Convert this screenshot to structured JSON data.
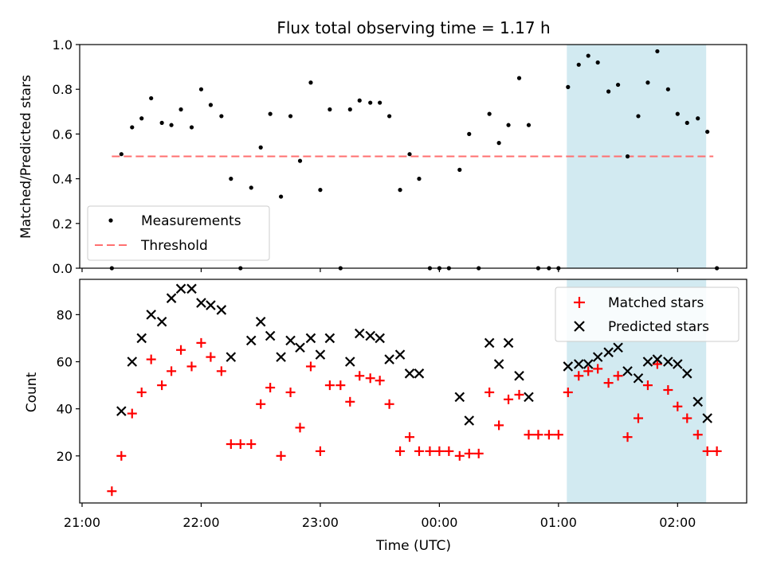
{
  "figure": {
    "title": "Flux total observing time = 1.17 h",
    "xlabel": "Time (UTC)",
    "x_tick_labels": [
      "21:00",
      "22:00",
      "23:00",
      "00:00",
      "01:00",
      "02:00"
    ]
  },
  "chart_data": [
    {
      "type": "scatter",
      "title": "Flux total observing time = 1.17 h",
      "ylabel": "Matched/Predicted stars",
      "xlim_hours": [
        20.98,
        26.58
      ],
      "ylim": [
        0,
        1.0
      ],
      "y_ticks": [
        "0.0",
        "0.2",
        "0.4",
        "0.6",
        "0.8",
        "1.0"
      ],
      "shaded_region_hours": [
        25.07,
        26.24
      ],
      "shaded_color": "#add8e6",
      "legend": [
        "Measurements",
        "Threshold"
      ],
      "legend_position": "lower-left",
      "threshold": {
        "name": "Threshold",
        "value": 0.5,
        "x_range_hours": [
          21.25,
          26.3
        ],
        "color": "#ff6f6f"
      },
      "series": [
        {
          "name": "Measurements",
          "color": "#000000",
          "points": [
            [
              21.25,
              0.0
            ],
            [
              21.33,
              0.51
            ],
            [
              21.42,
              0.63
            ],
            [
              21.5,
              0.67
            ],
            [
              21.58,
              0.76
            ],
            [
              21.67,
              0.65
            ],
            [
              21.75,
              0.64
            ],
            [
              21.83,
              0.71
            ],
            [
              21.92,
              0.63
            ],
            [
              22.0,
              0.8
            ],
            [
              22.08,
              0.73
            ],
            [
              22.17,
              0.68
            ],
            [
              22.25,
              0.4
            ],
            [
              22.33,
              0.0
            ],
            [
              22.42,
              0.36
            ],
            [
              22.5,
              0.54
            ],
            [
              22.58,
              0.69
            ],
            [
              22.67,
              0.32
            ],
            [
              22.75,
              0.68
            ],
            [
              22.83,
              0.48
            ],
            [
              22.92,
              0.83
            ],
            [
              23.0,
              0.35
            ],
            [
              23.08,
              0.71
            ],
            [
              23.17,
              0.0
            ],
            [
              23.25,
              0.71
            ],
            [
              23.33,
              0.75
            ],
            [
              23.42,
              0.74
            ],
            [
              23.5,
              0.74
            ],
            [
              23.58,
              0.68
            ],
            [
              23.67,
              0.35
            ],
            [
              23.75,
              0.51
            ],
            [
              23.83,
              0.4
            ],
            [
              23.92,
              0.0
            ],
            [
              24.0,
              0.0
            ],
            [
              24.08,
              0.0
            ],
            [
              24.17,
              0.44
            ],
            [
              24.25,
              0.6
            ],
            [
              24.33,
              0.0
            ],
            [
              24.42,
              0.69
            ],
            [
              24.5,
              0.56
            ],
            [
              24.58,
              0.64
            ],
            [
              24.67,
              0.85
            ],
            [
              24.75,
              0.64
            ],
            [
              24.83,
              0.0
            ],
            [
              24.92,
              0.0
            ],
            [
              25.0,
              0.0
            ],
            [
              25.08,
              0.81
            ],
            [
              25.17,
              0.91
            ],
            [
              25.25,
              0.95
            ],
            [
              25.33,
              0.92
            ],
            [
              25.42,
              0.79
            ],
            [
              25.5,
              0.82
            ],
            [
              25.58,
              0.5
            ],
            [
              25.67,
              0.68
            ],
            [
              25.75,
              0.83
            ],
            [
              25.83,
              0.97
            ],
            [
              25.92,
              0.8
            ],
            [
              26.0,
              0.69
            ],
            [
              26.08,
              0.65
            ],
            [
              26.17,
              0.67
            ],
            [
              26.25,
              0.61
            ],
            [
              26.33,
              0.0
            ]
          ]
        }
      ]
    },
    {
      "type": "scatter",
      "ylabel": "Count",
      "xlabel": "Time (UTC)",
      "xlim_hours": [
        20.98,
        26.58
      ],
      "ylim": [
        0,
        95
      ],
      "y_ticks": [
        "20",
        "40",
        "60",
        "80"
      ],
      "shaded_region_hours": [
        25.07,
        26.24
      ],
      "shaded_color": "#add8e6",
      "legend": [
        "Matched stars",
        "Predicted stars"
      ],
      "legend_position": "top-right",
      "series": [
        {
          "name": "Matched stars",
          "marker": "+",
          "color": "#ff0000",
          "points": [
            [
              21.25,
              5
            ],
            [
              21.33,
              20
            ],
            [
              21.42,
              38
            ],
            [
              21.5,
              47
            ],
            [
              21.58,
              61
            ],
            [
              21.67,
              50
            ],
            [
              21.75,
              56
            ],
            [
              21.83,
              65
            ],
            [
              21.92,
              58
            ],
            [
              22.0,
              68
            ],
            [
              22.08,
              62
            ],
            [
              22.17,
              56
            ],
            [
              22.25,
              25
            ],
            [
              22.33,
              25
            ],
            [
              22.42,
              25
            ],
            [
              22.5,
              42
            ],
            [
              22.58,
              49
            ],
            [
              22.67,
              20
            ],
            [
              22.75,
              47
            ],
            [
              22.83,
              32
            ],
            [
              22.92,
              58
            ],
            [
              23.0,
              22
            ],
            [
              23.08,
              50
            ],
            [
              23.17,
              50
            ],
            [
              23.25,
              43
            ],
            [
              23.33,
              54
            ],
            [
              23.42,
              53
            ],
            [
              23.5,
              52
            ],
            [
              23.58,
              42
            ],
            [
              23.67,
              22
            ],
            [
              23.75,
              28
            ],
            [
              23.83,
              22
            ],
            [
              23.92,
              22
            ],
            [
              24.0,
              22
            ],
            [
              24.08,
              22
            ],
            [
              24.17,
              20
            ],
            [
              24.25,
              21
            ],
            [
              24.33,
              21
            ],
            [
              24.42,
              47
            ],
            [
              24.5,
              33
            ],
            [
              24.58,
              44
            ],
            [
              24.67,
              46
            ],
            [
              24.75,
              29
            ],
            [
              24.83,
              29
            ],
            [
              24.92,
              29
            ],
            [
              25.0,
              29
            ],
            [
              25.08,
              47
            ],
            [
              25.17,
              54
            ],
            [
              25.25,
              56
            ],
            [
              25.33,
              57
            ],
            [
              25.42,
              51
            ],
            [
              25.5,
              54
            ],
            [
              25.58,
              28
            ],
            [
              25.67,
              36
            ],
            [
              25.75,
              50
            ],
            [
              25.83,
              59
            ],
            [
              25.92,
              48
            ],
            [
              26.0,
              41
            ],
            [
              26.08,
              36
            ],
            [
              26.17,
              29
            ],
            [
              26.25,
              22
            ],
            [
              26.33,
              22
            ]
          ]
        },
        {
          "name": "Predicted stars",
          "marker": "x",
          "color": "#000000",
          "points": [
            [
              21.33,
              39
            ],
            [
              21.42,
              60
            ],
            [
              21.5,
              70
            ],
            [
              21.58,
              80
            ],
            [
              21.67,
              77
            ],
            [
              21.75,
              87
            ],
            [
              21.83,
              91
            ],
            [
              21.92,
              91
            ],
            [
              22.0,
              85
            ],
            [
              22.08,
              84
            ],
            [
              22.17,
              82
            ],
            [
              22.25,
              62
            ],
            [
              22.42,
              69
            ],
            [
              22.5,
              77
            ],
            [
              22.58,
              71
            ],
            [
              22.67,
              62
            ],
            [
              22.75,
              69
            ],
            [
              22.83,
              66
            ],
            [
              22.92,
              70
            ],
            [
              23.0,
              63
            ],
            [
              23.08,
              70
            ],
            [
              23.25,
              60
            ],
            [
              23.33,
              72
            ],
            [
              23.42,
              71
            ],
            [
              23.5,
              70
            ],
            [
              23.58,
              61
            ],
            [
              23.67,
              63
            ],
            [
              23.75,
              55
            ],
            [
              23.83,
              55
            ],
            [
              24.17,
              45
            ],
            [
              24.25,
              35
            ],
            [
              24.42,
              68
            ],
            [
              24.5,
              59
            ],
            [
              24.58,
              68
            ],
            [
              24.67,
              54
            ],
            [
              24.75,
              45
            ],
            [
              25.08,
              58
            ],
            [
              25.17,
              59
            ],
            [
              25.25,
              59
            ],
            [
              25.33,
              62
            ],
            [
              25.42,
              64
            ],
            [
              25.5,
              66
            ],
            [
              25.58,
              56
            ],
            [
              25.67,
              53
            ],
            [
              25.75,
              60
            ],
            [
              25.83,
              61
            ],
            [
              25.92,
              60
            ],
            [
              26.0,
              59
            ],
            [
              26.08,
              55
            ],
            [
              26.17,
              43
            ],
            [
              26.25,
              36
            ]
          ]
        }
      ]
    }
  ]
}
